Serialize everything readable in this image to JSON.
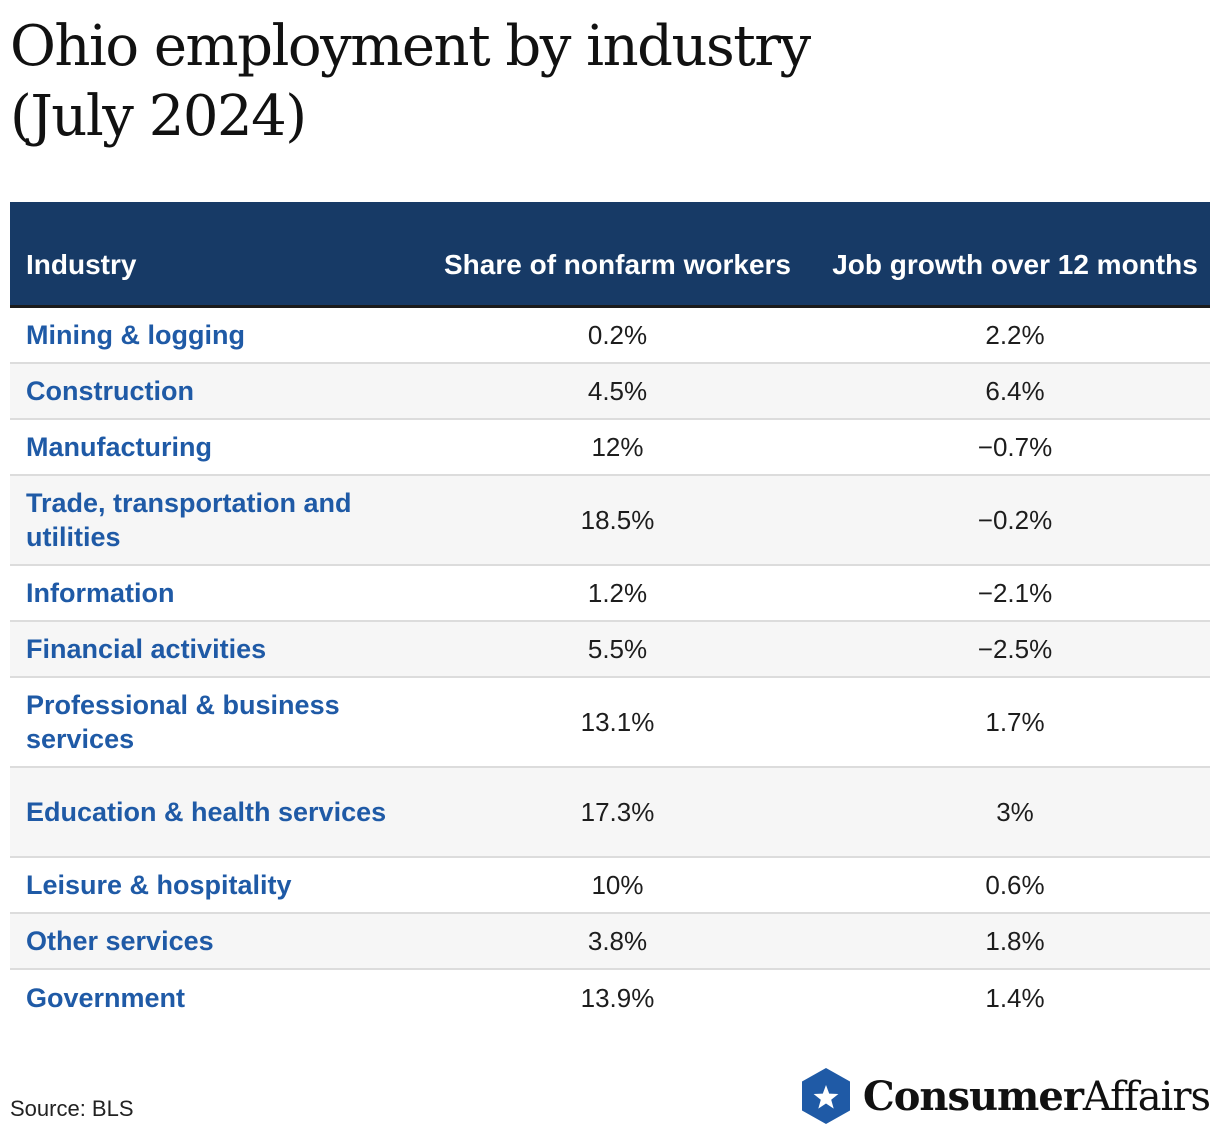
{
  "title_lines": [
    "Ohio employment by industry",
    "(July 2024)"
  ],
  "chart_data": {
    "type": "table",
    "title": "Ohio employment by industry (July 2024)",
    "columns": [
      "Industry",
      "Share of nonfarm workers",
      "Job growth over 12 months"
    ],
    "rows": [
      {
        "industry": "Mining & logging",
        "share": "0.2%",
        "growth": "2.2%"
      },
      {
        "industry": "Construction",
        "share": "4.5%",
        "growth": "6.4%"
      },
      {
        "industry": "Manufacturing",
        "share": "12%",
        "growth": "−0.7%"
      },
      {
        "industry": "Trade, transportation and utilities",
        "share": "18.5%",
        "growth": "−0.2%"
      },
      {
        "industry": "Information",
        "share": "1.2%",
        "growth": "−2.1%"
      },
      {
        "industry": "Financial activities",
        "share": "5.5%",
        "growth": "−2.5%"
      },
      {
        "industry": "Professional & business services",
        "share": "13.1%",
        "growth": "1.7%"
      },
      {
        "industry": "Education & health services",
        "share": "17.3%",
        "growth": "3%"
      },
      {
        "industry": "Leisure & hospitality",
        "share": "10%",
        "growth": "0.6%"
      },
      {
        "industry": "Other services",
        "share": "3.8%",
        "growth": "1.8%"
      },
      {
        "industry": "Government",
        "share": "13.9%",
        "growth": "1.4%"
      }
    ]
  },
  "source": "Source: BLS",
  "logo": {
    "icon": "star-hexagon-icon",
    "bold": "Consumer",
    "regular": "Affairs",
    "color": "#1f5aa6"
  },
  "colors": {
    "header_bg": "#173a66",
    "industry_text": "#1f5aa6",
    "row_alt": "#f6f6f6"
  }
}
